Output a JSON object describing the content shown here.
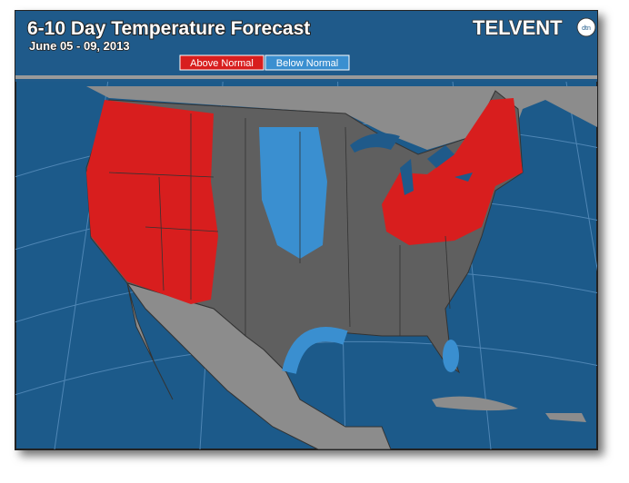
{
  "header": {
    "title": "6-10 Day Temperature Forecast",
    "subtitle": "June 05 - 09, 2013"
  },
  "legend": {
    "items": [
      {
        "label": "Above Normal",
        "color": "#d81e1e"
      },
      {
        "label": "Below Normal",
        "color": "#3a8fd0"
      }
    ]
  },
  "logo": {
    "brand": "TELVENT",
    "badge": "dtn"
  }
}
